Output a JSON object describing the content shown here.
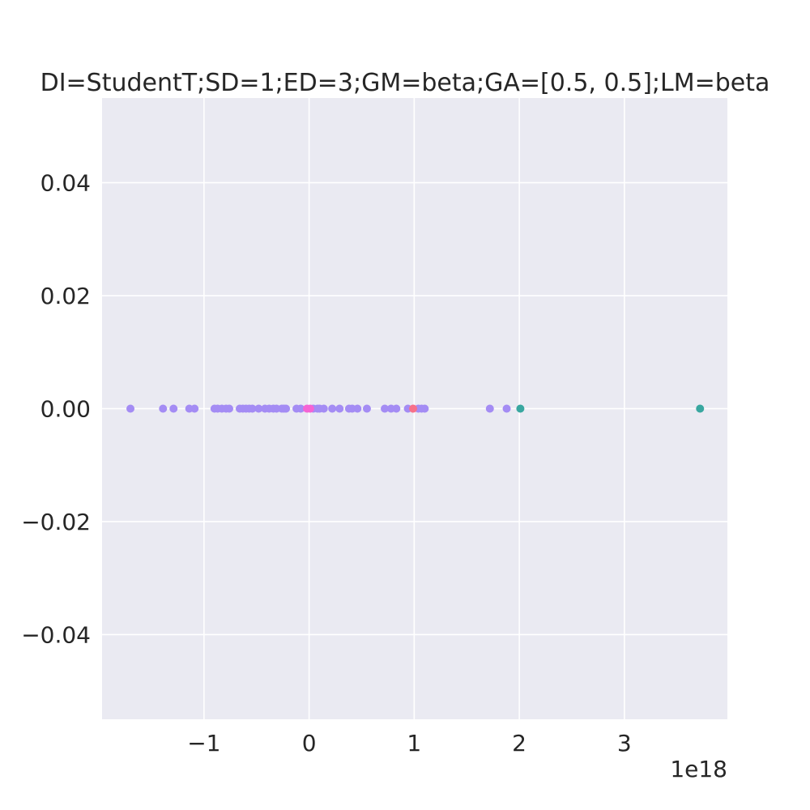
{
  "chart_data": {
    "type": "scatter",
    "title": "DI=StudentT;SD=1;ED=3;GM=beta;GA=[0.5, 0.5];LM=beta",
    "xlabel": "",
    "ylabel": "",
    "x_offset_label": "1e18",
    "xlim": [
      -1.97,
      3.98
    ],
    "ylim": [
      -0.055,
      0.055
    ],
    "x_scale_factor": 1e+18,
    "x_ticks": [
      -1,
      0,
      1,
      2,
      3
    ],
    "x_tick_labels": [
      "−1",
      "0",
      "1",
      "2",
      "3"
    ],
    "y_ticks": [
      0.04,
      0.02,
      0.0,
      -0.02,
      -0.04
    ],
    "y_tick_labels": [
      "0.04",
      "0.02",
      "0.00",
      "−0.02",
      "−0.04"
    ],
    "grid": true,
    "colors": {
      "background": "#eaeaf2",
      "grid": "#ffffff",
      "purple": "#a48cf4",
      "teal": "#39a7a0",
      "pink": "#f564d4",
      "salmon": "#f77189"
    },
    "series": [
      {
        "color": "#a48cf4",
        "x": [
          -1.7,
          -1.39,
          -1.29,
          -1.14,
          -1.09,
          -0.9,
          -0.87,
          -0.83,
          -0.79,
          -0.76,
          -0.66,
          -0.63,
          -0.6,
          -0.57,
          -0.54,
          -0.48,
          -0.42,
          -0.38,
          -0.34,
          -0.31,
          -0.26,
          -0.24,
          -0.22,
          -0.12,
          -0.08,
          0.04,
          0.08,
          0.1,
          0.14,
          0.22,
          0.29,
          0.38,
          0.41,
          0.46,
          0.55,
          0.72,
          0.78,
          0.83,
          0.94,
          1.04,
          1.07,
          1.1,
          1.72,
          1.88
        ],
        "y": [
          0,
          0,
          0,
          0,
          0,
          0,
          0,
          0,
          0,
          0,
          0,
          0,
          0,
          0,
          0,
          0,
          0,
          0,
          0,
          0,
          0,
          0,
          0,
          0,
          0,
          0,
          0,
          0,
          0,
          0,
          0,
          0,
          0,
          0,
          0,
          0,
          0,
          0,
          0,
          0,
          0,
          0,
          0,
          0
        ]
      },
      {
        "color": "#39a7a0",
        "x": [
          2.01,
          3.72
        ],
        "y": [
          0,
          0
        ]
      },
      {
        "color": "#f564d4",
        "x": [
          -0.02,
          0.01
        ],
        "y": [
          0,
          0
        ]
      },
      {
        "color": "#f77189",
        "x": [
          0.99
        ],
        "y": [
          0
        ]
      }
    ]
  }
}
